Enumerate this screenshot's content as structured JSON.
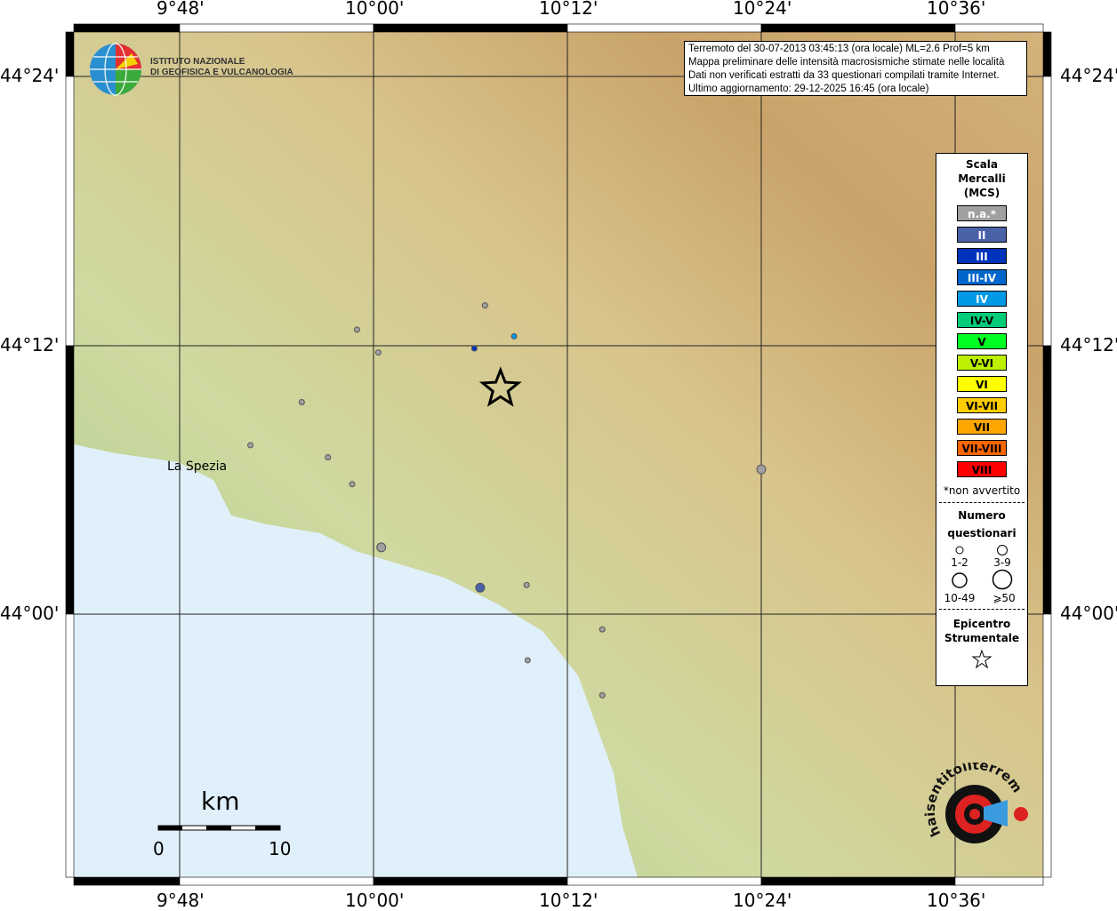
{
  "axis": {
    "top": [
      "9°48'",
      "10°00'",
      "10°12'",
      "10°24'",
      "10°36'"
    ],
    "left": [
      "44°24'",
      "44°12'",
      "44°00'"
    ],
    "right": [
      "44°24'",
      "44°12'",
      "44°00'"
    ]
  },
  "logo": {
    "line1": "ISTITUTO NAZIONALE",
    "line2": "DI GEOFISICA E VULCANOLOGIA"
  },
  "info": [
    "Terremoto del 30-07-2013 03:45:13 (ora locale) ML=2.6 Prof=5 km",
    "Mappa preliminare delle intensità macrosismiche stimate nelle località",
    "Dati non verificati estratti da 33 questionari compilati tramite Internet.",
    "Ultimo aggiornamento: 29-12-2025 16:45 (ora locale)"
  ],
  "legend": {
    "title": [
      "Scala",
      "Mercalli",
      "(MCS)"
    ],
    "classes": [
      {
        "label": "n.a.*",
        "color": "#a0a0a0",
        "text": "#fff"
      },
      {
        "label": "II",
        "color": "#4a62a8",
        "text": "#fff"
      },
      {
        "label": "III",
        "color": "#0033bb",
        "text": "#fff"
      },
      {
        "label": "III-IV",
        "color": "#0066cc",
        "text": "#fff"
      },
      {
        "label": "IV",
        "color": "#0099e6",
        "text": "#fff"
      },
      {
        "label": "IV-V",
        "color": "#00cc77",
        "text": "#000"
      },
      {
        "label": "V",
        "color": "#00ff22",
        "text": "#000"
      },
      {
        "label": "V-VI",
        "color": "#bbf000",
        "text": "#000"
      },
      {
        "label": "VI",
        "color": "#ffff00",
        "text": "#000"
      },
      {
        "label": "VI-VII",
        "color": "#ffcc00",
        "text": "#000"
      },
      {
        "label": "VII",
        "color": "#ffa500",
        "text": "#000"
      },
      {
        "label": "VII-VIII",
        "color": "#ff6600",
        "text": "#000"
      },
      {
        "label": "VIII",
        "color": "#ff0000",
        "text": "#000"
      }
    ],
    "note": "*non avvertito",
    "num_title": [
      "Numero",
      "questionari"
    ],
    "sizes": [
      "1-2",
      "3-9",
      "10-49",
      "⩾50"
    ],
    "epi_title": [
      "Epicentro",
      "Strumentale"
    ]
  },
  "place": "La Spezia",
  "scale": {
    "unit": "km",
    "min": "0",
    "max": "10"
  },
  "brand": "haisentitoilterremoto.it  www.",
  "points": [
    {
      "lon": 10.115,
      "lat": 44.23,
      "mcs": "n.a.*"
    },
    {
      "lon": 9.983,
      "lat": 44.212,
      "mcs": "n.a.*"
    },
    {
      "lon": 10.005,
      "lat": 44.195,
      "mcs": "n.a.*"
    },
    {
      "lon": 9.926,
      "lat": 44.158,
      "mcs": "n.a.*"
    },
    {
      "lon": 9.873,
      "lat": 44.126,
      "mcs": "n.a.*"
    },
    {
      "lon": 9.953,
      "lat": 44.117,
      "mcs": "n.a.*"
    },
    {
      "lon": 9.978,
      "lat": 44.097,
      "mcs": "n.a.*"
    },
    {
      "lon": 10.008,
      "lat": 44.05,
      "mcs": "n.a.*",
      "size": "3-9"
    },
    {
      "lon": 10.158,
      "lat": 44.022,
      "mcs": "n.a.*"
    },
    {
      "lon": 10.236,
      "lat": 43.989,
      "mcs": "n.a.*"
    },
    {
      "lon": 10.159,
      "lat": 43.966,
      "mcs": "n.a.*"
    },
    {
      "lon": 10.236,
      "lat": 43.94,
      "mcs": "n.a.*"
    },
    {
      "lon": 10.4,
      "lat": 44.108,
      "mcs": "n.a.*",
      "size": "3-9"
    },
    {
      "lon": 10.104,
      "lat": 44.198,
      "mcs": "III"
    },
    {
      "lon": 10.145,
      "lat": 44.207,
      "mcs": "IV"
    },
    {
      "lon": 10.11,
      "lat": 44.02,
      "mcs": "II",
      "size": "3-9"
    }
  ],
  "epicenter": {
    "lon": 10.131,
    "lat": 44.168
  }
}
